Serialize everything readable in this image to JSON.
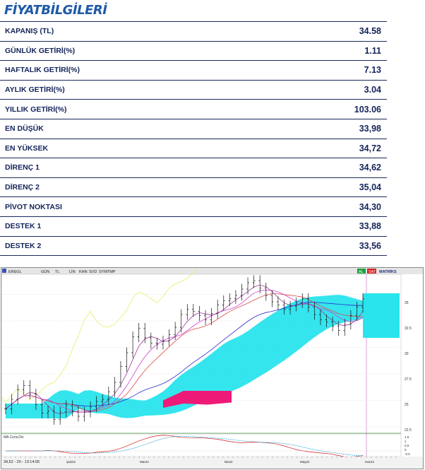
{
  "header": {
    "title": "FİYATBİLGİLERİ"
  },
  "rows": [
    {
      "label": "KAPANIŞ (TL)",
      "value": "34.58"
    },
    {
      "label": "GÜNLÜK GETİRİ(%)",
      "value": "1.11"
    },
    {
      "label": "HAFTALIK GETİRİ(%)",
      "value": "7.13"
    },
    {
      "label": "AYLIK GETİRİ(%)",
      "value": "3.04"
    },
    {
      "label": "YILLIK  GETİRİ(%)",
      "value": "103.06"
    },
    {
      "label": "EN DÜŞÜK",
      "value": "33,98"
    },
    {
      "label": "EN YÜKSEK",
      "value": "34,72"
    },
    {
      "label": "DİRENÇ 1",
      "value": "34,62"
    },
    {
      "label": "DİRENÇ 2",
      "value": "35,04"
    },
    {
      "label": "PİVOT NOKTASI",
      "value": "34,30"
    },
    {
      "label": "DESTEK 1",
      "value": "33,88"
    },
    {
      "label": "DESTEK 2",
      "value": "33,56"
    }
  ],
  "chart": {
    "toolbar_left": [
      "EREGL",
      "GÜN",
      "TL",
      "LİN",
      "KHN",
      "SVD",
      "SYMTMP"
    ],
    "toolbar_right": [
      "AL",
      "SAT",
      "MATRİKS"
    ],
    "ticks_y": [
      "35",
      "32.5",
      "30",
      "27.5",
      "25",
      "22.5"
    ],
    "osc_label": "MA Conv.Div",
    "osc_ticks": [
      "1.5",
      "1",
      "0.5",
      "0",
      "-0.5"
    ],
    "status": "34,52 - 20 - 13:14:05",
    "x_ticks": [
      "Şub22",
      "Mar22",
      "Nis22",
      "May22",
      "Haz22"
    ],
    "colors": {
      "cloud": "#29e4ec",
      "cloud_red": "#ee1a78",
      "ma_blue": "#2b2bd0",
      "ma_red": "#e04848",
      "ma_magenta": "#d040d0",
      "lagging": "#ecec6a"
    }
  },
  "chart_data": {
    "type": "line",
    "y_axis_ticks": [
      35,
      32.5,
      30,
      27.5,
      25,
      22.5
    ],
    "x_axis_ticks": [
      "Şub22",
      "Mar22",
      "Nis22",
      "May22",
      "Haz22"
    ],
    "price_close_approx": [
      24.2,
      25.1,
      26.0,
      26.4,
      25.6,
      24.6,
      23.8,
      24.0,
      23.2,
      23.9,
      24.5,
      24.0,
      23.5,
      23.9,
      24.4,
      24.9,
      25.1,
      25.8,
      26.7,
      28.2,
      29.5,
      31.0,
      31.8,
      30.9,
      30.4,
      30.3,
      30.6,
      31.2,
      31.9,
      33.1,
      33.6,
      33.4,
      33.0,
      32.6,
      33.2,
      34.0,
      34.4,
      34.6,
      34.9,
      35.5,
      36.1,
      36.3,
      35.6,
      34.9,
      34.3,
      34.0,
      33.6,
      33.9,
      34.2,
      34.6,
      33.8,
      33.1,
      32.6,
      32.4,
      32.0,
      31.6,
      32.2,
      33.0,
      33.8,
      34.58
    ],
    "ylim": [
      21.9,
      36.9
    ]
  }
}
